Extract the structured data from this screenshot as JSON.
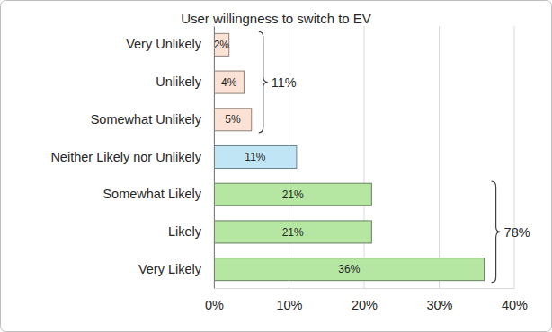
{
  "chart_data": {
    "type": "bar",
    "orientation": "horizontal",
    "title": "User willingness to switch to EV",
    "categories": [
      "Very Unlikely",
      "Unlikely",
      "Somewhat Unlikely",
      "Neither Likely nor Unlikely",
      "Somewhat Likely",
      "Likely",
      "Very Likely"
    ],
    "values": [
      2,
      4,
      5,
      11,
      21,
      21,
      36
    ],
    "value_labels": [
      "2%",
      "4%",
      "5%",
      "11%",
      "21%",
      "21%",
      "36%"
    ],
    "colors": [
      "#fbe2d5",
      "#fbe2d5",
      "#fbe2d5",
      "#c0e6f5",
      "#b5e6a2",
      "#b5e6a2",
      "#b5e6a2"
    ],
    "data_labels": true,
    "xlim": [
      0,
      40
    ],
    "xticks": [
      {
        "value": 0,
        "label": "0%"
      },
      {
        "value": 10,
        "label": "10%"
      },
      {
        "value": 20,
        "label": "20%"
      },
      {
        "value": 30,
        "label": "30%"
      },
      {
        "value": 40,
        "label": "40%"
      }
    ],
    "grid": true,
    "annotations": [
      {
        "text": "11%",
        "categories": [
          "Very Unlikely",
          "Unlikely",
          "Somewhat Unlikely"
        ]
      },
      {
        "text": "78%",
        "categories": [
          "Somewhat Likely",
          "Likely",
          "Very Likely"
        ]
      }
    ]
  }
}
